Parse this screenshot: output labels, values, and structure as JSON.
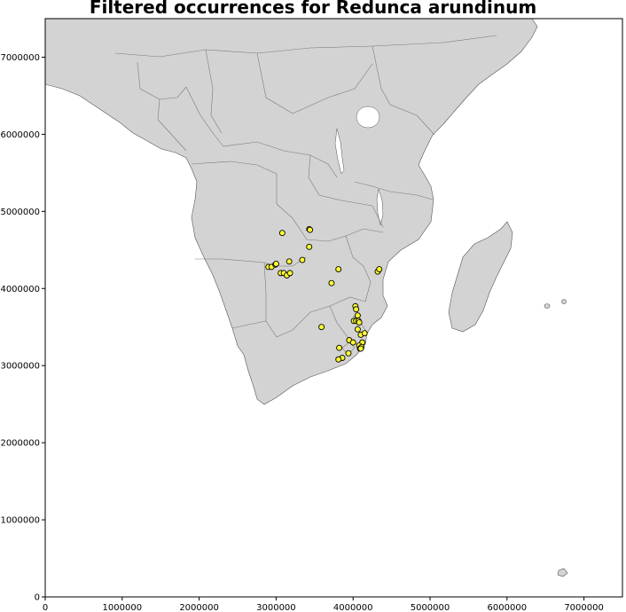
{
  "title": "Filtered occurrences for Redunca arundinum",
  "colors": {
    "land": "#d3d3d3",
    "border": "#7a7a7a",
    "coast": "#555555",
    "water": "#ffffff",
    "point_fill": "#ffff33",
    "point_edge": "#000000"
  },
  "chart_data": {
    "type": "scatter",
    "title": "Filtered occurrences for Redunca arundinum",
    "xlabel": "",
    "ylabel": "",
    "xlim": [
      0,
      7500000
    ],
    "ylim": [
      0,
      7500000
    ],
    "x_ticks": [
      0,
      1000000,
      2000000,
      3000000,
      4000000,
      5000000,
      6000000,
      7000000
    ],
    "y_ticks": [
      0,
      1000000,
      2000000,
      3000000,
      4000000,
      5000000,
      6000000,
      7000000
    ],
    "x_tick_labels": [
      "0",
      "1000000",
      "2000000",
      "3000000",
      "4000000",
      "5000000",
      "6000000",
      "7000000"
    ],
    "y_tick_labels": [
      "0",
      "1000000",
      "2000000",
      "3000000",
      "4000000",
      "5000000",
      "6000000",
      "7000000"
    ],
    "basemap": "Africa country boundaries",
    "series": [
      {
        "points": [
          [
            3080000,
            4720000
          ],
          [
            3430000,
            4770000
          ],
          [
            3440000,
            4760000
          ],
          [
            3430000,
            4540000
          ],
          [
            2900000,
            4280000
          ],
          [
            2940000,
            4280000
          ],
          [
            2990000,
            4310000
          ],
          [
            3000000,
            4320000
          ],
          [
            3170000,
            4350000
          ],
          [
            3340000,
            4370000
          ],
          [
            3060000,
            4200000
          ],
          [
            3100000,
            4200000
          ],
          [
            3140000,
            4170000
          ],
          [
            3180000,
            4200000
          ],
          [
            3810000,
            4250000
          ],
          [
            3720000,
            4070000
          ],
          [
            4320000,
            4220000
          ],
          [
            4340000,
            4250000
          ],
          [
            4030000,
            3770000
          ],
          [
            4040000,
            3730000
          ],
          [
            4060000,
            3650000
          ],
          [
            4010000,
            3580000
          ],
          [
            4040000,
            3580000
          ],
          [
            4070000,
            3580000
          ],
          [
            4080000,
            3560000
          ],
          [
            4060000,
            3470000
          ],
          [
            4100000,
            3400000
          ],
          [
            4150000,
            3420000
          ],
          [
            3590000,
            3500000
          ],
          [
            3950000,
            3330000
          ],
          [
            4000000,
            3300000
          ],
          [
            4120000,
            3300000
          ],
          [
            4080000,
            3260000
          ],
          [
            4110000,
            3240000
          ],
          [
            4090000,
            3220000
          ],
          [
            3820000,
            3230000
          ],
          [
            3940000,
            3160000
          ],
          [
            3860000,
            3100000
          ],
          [
            3810000,
            3080000
          ],
          [
            4100000,
            3220000
          ]
        ]
      }
    ]
  }
}
